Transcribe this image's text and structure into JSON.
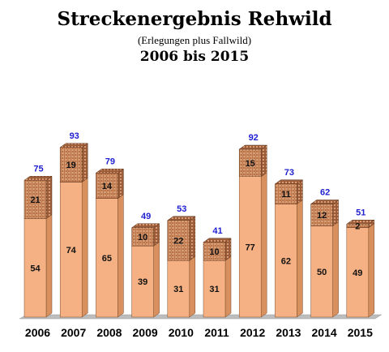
{
  "header": {
    "title": "Streckenergebnis Rehwild",
    "subtitle": "(Erlegungen plus Fallwild)",
    "period": "2006 bis 2015"
  },
  "colors": {
    "base": "#f5b183",
    "base_side": "#d8905f",
    "base_top": "#f8c8a4",
    "stripe_bg": "#b9744a",
    "stripe_line": "#f3c6a0",
    "total_label": "#2020d0"
  },
  "chart_data": {
    "type": "bar",
    "stacked": true,
    "categories": [
      "2006",
      "2007",
      "2008",
      "2009",
      "2010",
      "2011",
      "2012",
      "2013",
      "2014",
      "2015"
    ],
    "series": [
      {
        "values": [
          54,
          74,
          65,
          39,
          31,
          31,
          77,
          62,
          50,
          49
        ]
      },
      {
        "values": [
          21,
          19,
          14,
          10,
          22,
          10,
          15,
          11,
          12,
          2
        ]
      }
    ],
    "totals": [
      75,
      93,
      79,
      49,
      53,
      41,
      92,
      73,
      62,
      51
    ],
    "ylim": [
      0,
      100
    ],
    "grid": false,
    "legend": "none"
  }
}
